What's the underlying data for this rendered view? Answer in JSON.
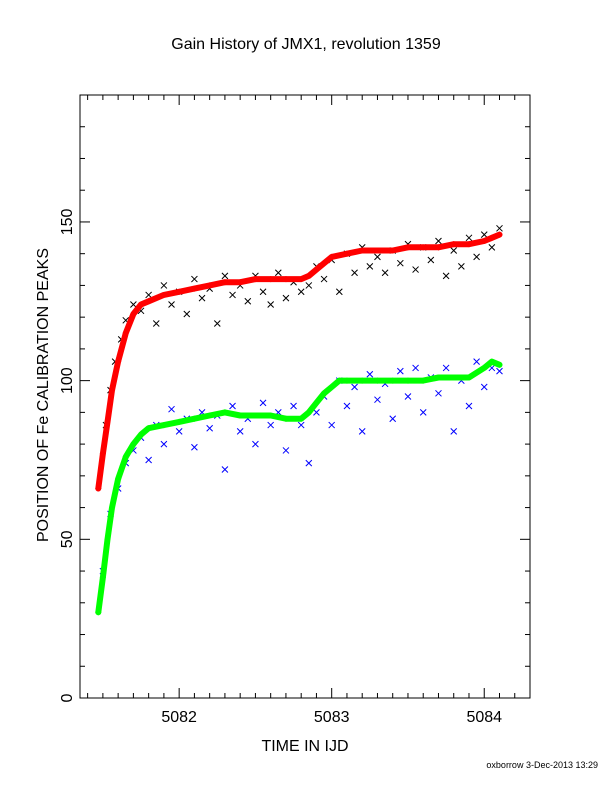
{
  "chart_data": {
    "type": "scatter",
    "title": "Gain History of JMX1, revolution 1359",
    "xlabel": "TIME IN IJD",
    "ylabel": "POSITION OF Fe CALIBRATION PEAKS",
    "xlim": [
      5081.35,
      5084.3
    ],
    "ylim": [
      0,
      190
    ],
    "xticks": [
      5082,
      5083,
      5084
    ],
    "yticks": [
      0,
      50,
      100,
      150
    ],
    "grid": false,
    "series": [
      {
        "color": "#000000",
        "marker": "x",
        "x": [
          5081.52,
          5081.55,
          5081.58,
          5081.62,
          5081.65,
          5081.7,
          5081.75,
          5081.8,
          5081.85,
          5081.9,
          5081.95,
          5082.0,
          5082.05,
          5082.1,
          5082.15,
          5082.2,
          5082.25,
          5082.3,
          5082.35,
          5082.4,
          5082.45,
          5082.5,
          5082.55,
          5082.6,
          5082.65,
          5082.7,
          5082.75,
          5082.8,
          5082.85,
          5082.9,
          5082.95,
          5083.0,
          5083.05,
          5083.1,
          5083.15,
          5083.2,
          5083.25,
          5083.3,
          5083.35,
          5083.4,
          5083.45,
          5083.5,
          5083.55,
          5083.6,
          5083.65,
          5083.7,
          5083.75,
          5083.8,
          5083.85,
          5083.9,
          5083.95,
          5084.0,
          5084.05,
          5084.1
        ],
        "y": [
          86,
          97,
          106,
          113,
          119,
          124,
          122,
          127,
          118,
          130,
          124,
          128,
          121,
          132,
          126,
          129,
          118,
          133,
          127,
          130,
          125,
          133,
          128,
          124,
          134,
          126,
          131,
          128,
          130,
          136,
          132,
          138,
          128,
          140,
          134,
          142,
          136,
          139,
          134,
          141,
          137,
          143,
          135,
          142,
          138,
          144,
          133,
          141,
          136,
          145,
          139,
          146,
          142,
          148
        ]
      },
      {
        "color": "#ff0000",
        "marker": "+",
        "x": [
          5081.47,
          5081.5,
          5081.53,
          5081.56,
          5081.6,
          5081.65,
          5081.7,
          5081.75,
          5081.8,
          5081.9,
          5082.0,
          5082.1,
          5082.2,
          5082.3,
          5082.4,
          5082.5,
          5082.6,
          5082.7,
          5082.8,
          5082.85,
          5082.9,
          5082.95,
          5083.0,
          5083.1,
          5083.2,
          5083.3,
          5083.4,
          5083.5,
          5083.6,
          5083.7,
          5083.8,
          5083.9,
          5084.0,
          5084.05,
          5084.1
        ],
        "y": [
          66,
          77,
          87,
          97,
          106,
          115,
          121,
          124,
          125,
          127,
          128,
          129,
          130,
          131,
          131,
          132,
          132,
          132,
          132,
          133,
          135,
          137,
          139,
          140,
          141,
          141,
          141,
          142,
          142,
          142,
          143,
          143,
          144,
          145,
          146
        ]
      },
      {
        "color": "#0000ff",
        "marker": "x",
        "x": [
          5081.5,
          5081.55,
          5081.6,
          5081.65,
          5081.7,
          5081.75,
          5081.8,
          5081.85,
          5081.9,
          5081.95,
          5082.0,
          5082.05,
          5082.1,
          5082.15,
          5082.2,
          5082.25,
          5082.3,
          5082.35,
          5082.4,
          5082.45,
          5082.5,
          5082.55,
          5082.6,
          5082.65,
          5082.7,
          5082.75,
          5082.8,
          5082.85,
          5082.9,
          5082.95,
          5083.0,
          5083.05,
          5083.1,
          5083.15,
          5083.2,
          5083.25,
          5083.3,
          5083.35,
          5083.4,
          5083.45,
          5083.5,
          5083.55,
          5083.6,
          5083.65,
          5083.7,
          5083.75,
          5083.8,
          5083.85,
          5083.9,
          5083.95,
          5084.0,
          5084.05,
          5084.1
        ],
        "y": [
          40,
          58,
          66,
          74,
          78,
          82,
          75,
          86,
          80,
          91,
          84,
          88,
          79,
          90,
          85,
          89,
          72,
          92,
          84,
          88,
          80,
          93,
          86,
          90,
          78,
          92,
          86,
          74,
          90,
          95,
          86,
          100,
          92,
          98,
          84,
          102,
          94,
          99,
          88,
          103,
          95,
          104,
          90,
          101,
          96,
          104,
          84,
          100,
          92,
          106,
          98,
          104,
          103
        ]
      },
      {
        "color": "#00ff00",
        "marker": "+",
        "x": [
          5081.47,
          5081.5,
          5081.53,
          5081.56,
          5081.6,
          5081.65,
          5081.7,
          5081.75,
          5081.8,
          5081.9,
          5082.0,
          5082.1,
          5082.2,
          5082.3,
          5082.4,
          5082.5,
          5082.6,
          5082.7,
          5082.8,
          5082.85,
          5082.9,
          5082.95,
          5083.0,
          5083.05,
          5083.1,
          5083.2,
          5083.3,
          5083.4,
          5083.5,
          5083.6,
          5083.7,
          5083.8,
          5083.9,
          5084.0,
          5084.05,
          5084.1
        ],
        "y": [
          27,
          38,
          50,
          60,
          69,
          76,
          80,
          83,
          85,
          86,
          87,
          88,
          89,
          90,
          89,
          89,
          89,
          88,
          88,
          90,
          93,
          96,
          98,
          100,
          100,
          100,
          100,
          100,
          100,
          100,
          101,
          101,
          101,
          104,
          106,
          105
        ]
      }
    ]
  },
  "footer": {
    "credit": "oxborrow 3-Dec-2013 13:29"
  }
}
